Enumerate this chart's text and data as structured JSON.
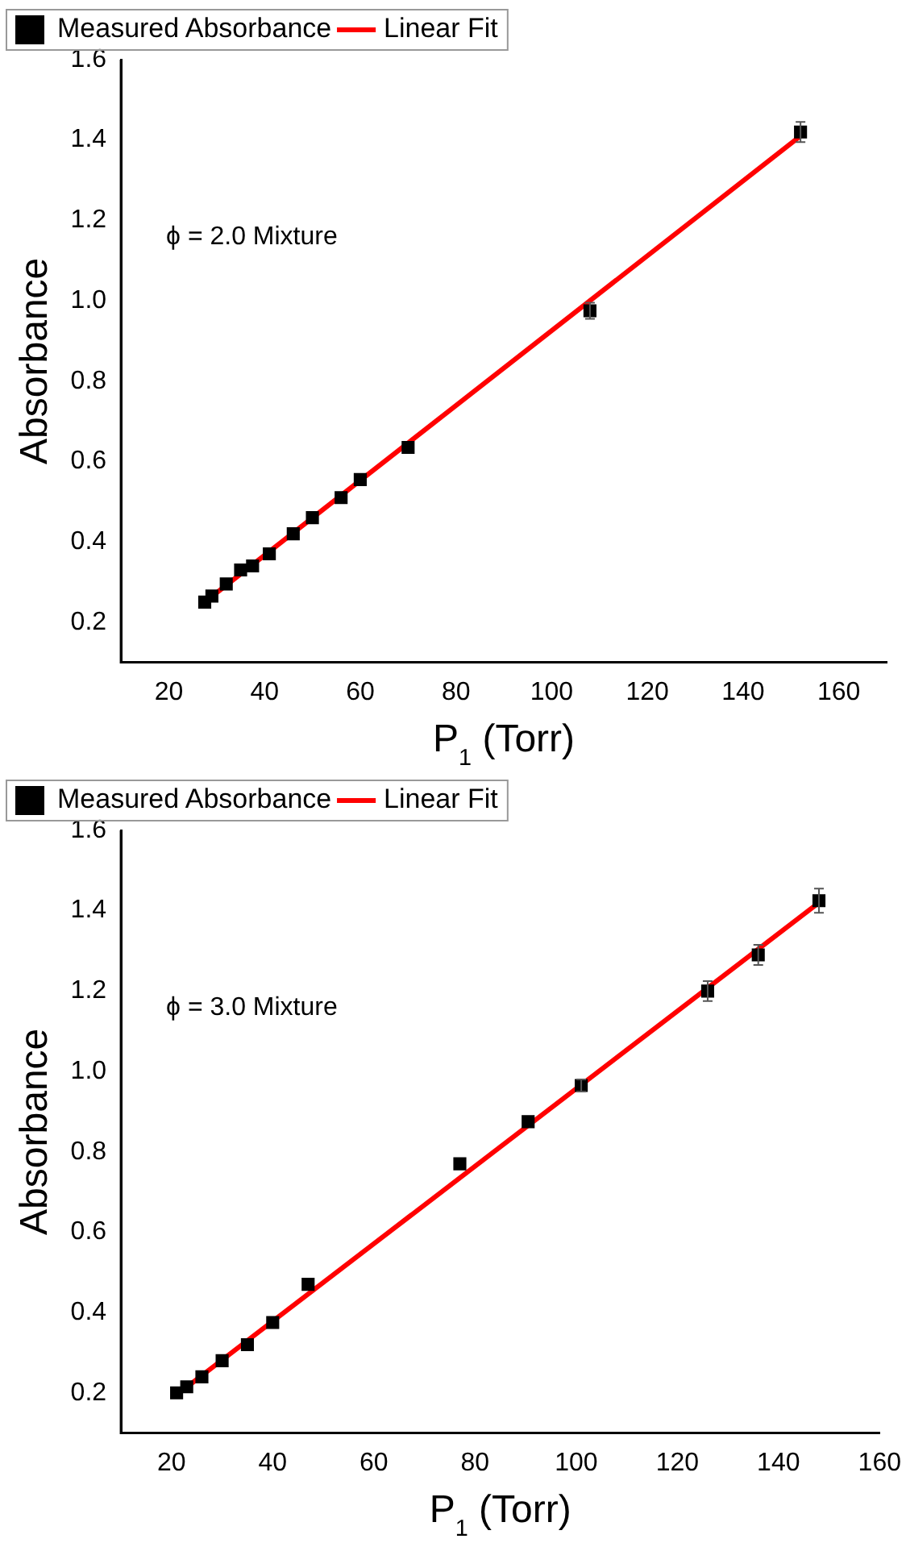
{
  "chart_data": [
    {
      "type": "scatter",
      "xlabel": "P$_{1}$ (Torr)",
      "ylabel": "Absorbance",
      "annotations": [
        "ϕ = 2.0 Mixture"
      ],
      "xlim": [
        10,
        170
      ],
      "xticks": [
        20,
        40,
        60,
        80,
        100,
        120,
        140,
        160
      ],
      "ylim": [
        0.1,
        1.6
      ],
      "yticks": [
        {
          "value": 0.2,
          "label": "0.2"
        },
        {
          "value": 0.4,
          "label": "0.4"
        },
        {
          "value": 0.6,
          "label": "0.6"
        },
        {
          "value": 0.8,
          "label": "0.8"
        },
        {
          "value": 1.0,
          "label": "1.0"
        },
        {
          "value": 1.2,
          "label": "1.2"
        },
        {
          "value": 1.4,
          "label": "1.4"
        },
        {
          "value": 1.6,
          "label": "1.6"
        }
      ],
      "grid": false,
      "legend": "top left",
      "series": [
        {
          "name": "Measured Absorbance",
          "marker": "square",
          "color": "#000000",
          "x": [
            27.5,
            29,
            32,
            35,
            37.5,
            41,
            46,
            50,
            56,
            60,
            70,
            108,
            152
          ],
          "values": [
            0.25,
            0.265,
            0.295,
            0.33,
            0.34,
            0.37,
            0.42,
            0.46,
            0.51,
            0.555,
            0.635,
            0.975,
            1.42
          ],
          "errors": [
            null,
            null,
            null,
            null,
            null,
            null,
            null,
            null,
            null,
            null,
            null,
            0.02,
            0.025
          ]
        },
        {
          "name": "Linear Fit",
          "type": "line",
          "marker": "none",
          "color": "#ff0000",
          "line_style": "solid",
          "x": [
            27.5,
            152
          ],
          "values": [
            0.25,
            1.41
          ]
        }
      ]
    },
    {
      "type": "scatter",
      "xlabel": "P$_{1}$ (Torr)",
      "ylabel": "Absorbance",
      "annotations": [
        "ϕ = 3.0 Mixture"
      ],
      "xlim": [
        10,
        160
      ],
      "xticks": [
        20,
        40,
        60,
        80,
        100,
        120,
        140,
        160
      ],
      "ylim": [
        0.1,
        1.6
      ],
      "yticks": [
        {
          "value": 0.2,
          "label": "0.2"
        },
        {
          "value": 0.4,
          "label": "0.4"
        },
        {
          "value": 0.6,
          "label": "0.6"
        },
        {
          "value": 0.8,
          "label": "0.8"
        },
        {
          "value": 1.0,
          "label": "1.0"
        },
        {
          "value": 1.2,
          "label": "1.2"
        },
        {
          "value": 1.4,
          "label": "1.4"
        },
        {
          "value": 1.6,
          "label": "1.6"
        }
      ],
      "grid": false,
      "legend": "top left",
      "series": [
        {
          "name": "Measured Absorbance",
          "marker": "square",
          "color": "#000000",
          "x": [
            21,
            23,
            26,
            30,
            35,
            40,
            47,
            77,
            90.5,
            101,
            126,
            136,
            148
          ],
          "values": [
            0.2,
            0.215,
            0.24,
            0.28,
            0.32,
            0.375,
            0.47,
            0.77,
            0.875,
            0.965,
            1.2,
            1.29,
            1.425
          ],
          "errors": [
            null,
            null,
            null,
            null,
            null,
            null,
            null,
            null,
            null,
            0.015,
            0.025,
            0.025,
            0.03
          ]
        },
        {
          "name": "Linear Fit",
          "type": "line",
          "marker": "none",
          "color": "#ff0000",
          "line_style": "solid",
          "x": [
            21,
            148
          ],
          "values": [
            0.195,
            1.42
          ]
        }
      ]
    }
  ]
}
